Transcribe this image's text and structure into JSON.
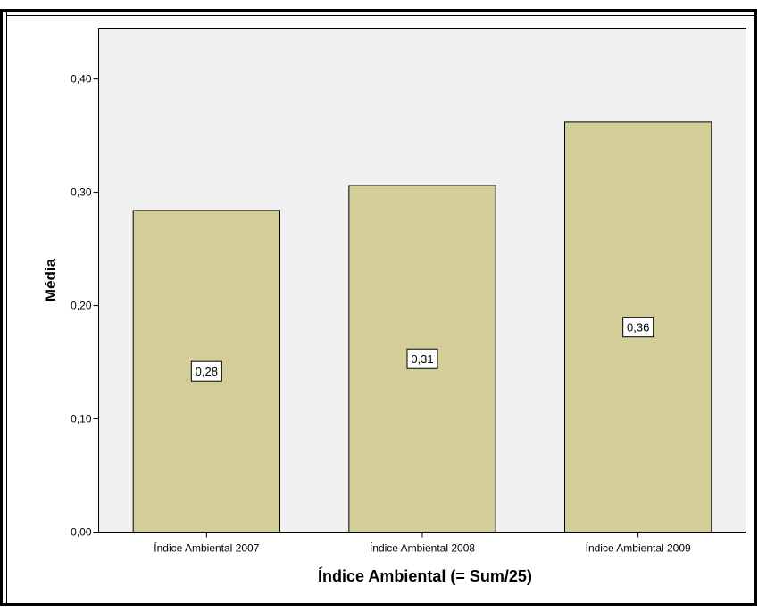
{
  "chart_data": {
    "type": "bar",
    "categories": [
      "Índice Ambiental 2007",
      "Índice Ambiental 2008",
      "Índice Ambiental 2009"
    ],
    "values": [
      0.284,
      0.306,
      0.362
    ],
    "data_labels": [
      "0,28",
      "0,31",
      "0,36"
    ],
    "xlabel": "Índice Ambiental (= Sum/25)",
    "ylabel": "Média",
    "ylim": [
      0,
      0.445
    ],
    "yticks": [
      0,
      0.1,
      0.2,
      0.3,
      0.4
    ],
    "ytick_labels": [
      "0,00",
      "0,10",
      "0,20",
      "0,30",
      "0,40"
    ],
    "grid": false,
    "colors": {
      "bar": "#d3ce98",
      "plot_background": "#f0f0f0",
      "outline": "#000000"
    }
  }
}
